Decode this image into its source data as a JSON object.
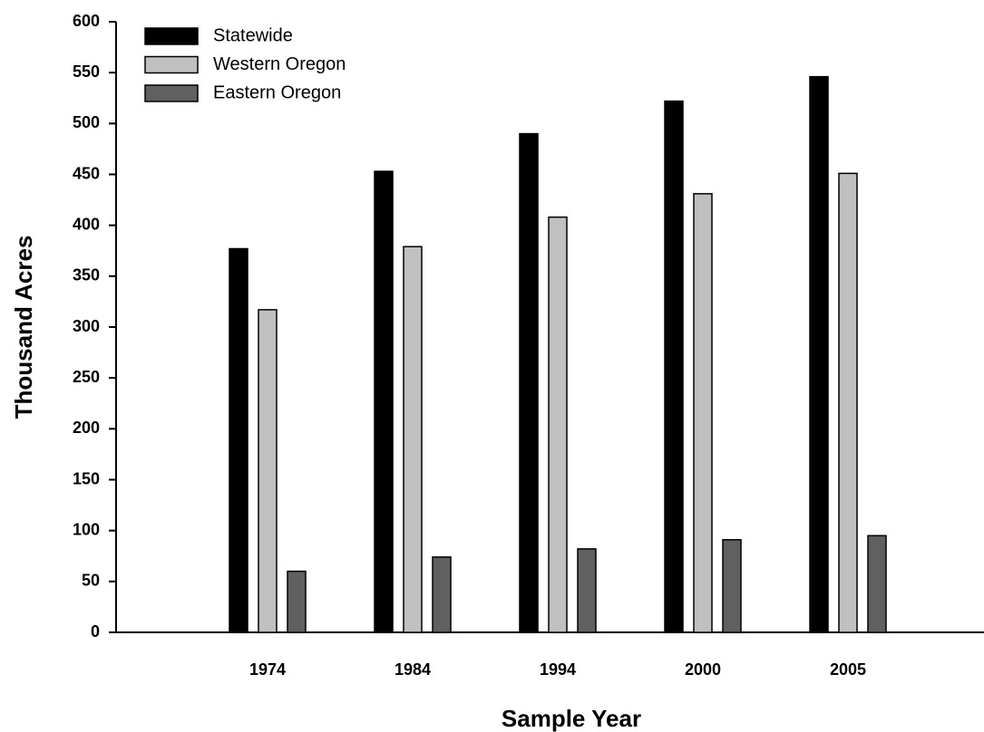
{
  "chart_data": {
    "type": "bar",
    "x_label": "Sample Year",
    "y_label": "Thousand Acres",
    "categories": [
      "1974",
      "1984",
      "1994",
      "2000",
      "2005"
    ],
    "series": [
      {
        "name": "Statewide",
        "color": "#000000",
        "values": [
          377,
          453,
          490,
          522,
          546
        ]
      },
      {
        "name": "Western Oregon",
        "color": "#c0c0c0",
        "values": [
          317,
          379,
          408,
          431,
          451
        ]
      },
      {
        "name": "Eastern Oregon",
        "color": "#606060",
        "values": [
          60,
          74,
          82,
          91,
          95
        ]
      }
    ],
    "ylim": [
      0,
      600
    ],
    "yticks": [
      0,
      50,
      100,
      150,
      200,
      250,
      300,
      350,
      400,
      450,
      500,
      550,
      600
    ],
    "legend": "upper left"
  }
}
